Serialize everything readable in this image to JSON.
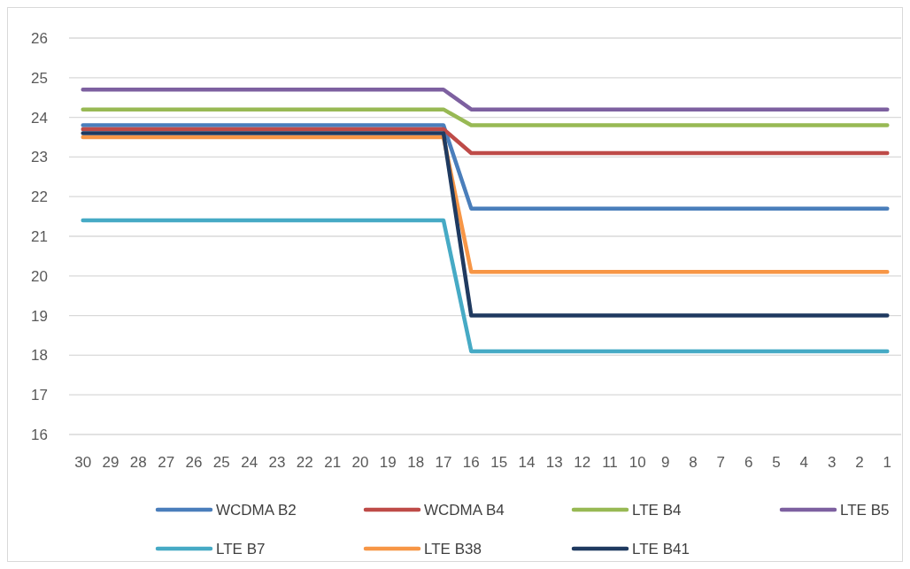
{
  "chart_data": {
    "type": "line",
    "categories": [
      "30",
      "29",
      "28",
      "27",
      "26",
      "25",
      "24",
      "23",
      "22",
      "21",
      "20",
      "19",
      "18",
      "17",
      "16",
      "15",
      "14",
      "13",
      "12",
      "11",
      "10",
      "9",
      "8",
      "7",
      "6",
      "5",
      "4",
      "3",
      "2",
      "1"
    ],
    "ylim": [
      16,
      26
    ],
    "yticks": [
      16,
      17,
      18,
      19,
      20,
      21,
      22,
      23,
      24,
      25,
      26
    ],
    "grid": "y",
    "legend": "bottom",
    "marker": "none",
    "line_style": "solid",
    "series": [
      {
        "name": "WCDMA B2",
        "color": "#4a7ebb",
        "values": [
          23.8,
          23.8,
          23.8,
          23.8,
          23.8,
          23.8,
          23.8,
          23.8,
          23.8,
          23.8,
          23.8,
          23.8,
          23.8,
          23.8,
          21.7,
          21.7,
          21.7,
          21.7,
          21.7,
          21.7,
          21.7,
          21.7,
          21.7,
          21.7,
          21.7,
          21.7,
          21.7,
          21.7,
          21.7,
          21.7
        ]
      },
      {
        "name": "WCDMA B4",
        "color": "#be4b48",
        "values": [
          23.7,
          23.7,
          23.7,
          23.7,
          23.7,
          23.7,
          23.7,
          23.7,
          23.7,
          23.7,
          23.7,
          23.7,
          23.7,
          23.7,
          23.1,
          23.1,
          23.1,
          23.1,
          23.1,
          23.1,
          23.1,
          23.1,
          23.1,
          23.1,
          23.1,
          23.1,
          23.1,
          23.1,
          23.1,
          23.1
        ]
      },
      {
        "name": "LTE B4",
        "color": "#98b954",
        "values": [
          24.2,
          24.2,
          24.2,
          24.2,
          24.2,
          24.2,
          24.2,
          24.2,
          24.2,
          24.2,
          24.2,
          24.2,
          24.2,
          24.2,
          23.8,
          23.8,
          23.8,
          23.8,
          23.8,
          23.8,
          23.8,
          23.8,
          23.8,
          23.8,
          23.8,
          23.8,
          23.8,
          23.8,
          23.8,
          23.8
        ]
      },
      {
        "name": "LTE B5",
        "color": "#7d60a0",
        "values": [
          24.7,
          24.7,
          24.7,
          24.7,
          24.7,
          24.7,
          24.7,
          24.7,
          24.7,
          24.7,
          24.7,
          24.7,
          24.7,
          24.7,
          24.2,
          24.2,
          24.2,
          24.2,
          24.2,
          24.2,
          24.2,
          24.2,
          24.2,
          24.2,
          24.2,
          24.2,
          24.2,
          24.2,
          24.2,
          24.2
        ]
      },
      {
        "name": "LTE B7",
        "color": "#46aac5",
        "values": [
          21.4,
          21.4,
          21.4,
          21.4,
          21.4,
          21.4,
          21.4,
          21.4,
          21.4,
          21.4,
          21.4,
          21.4,
          21.4,
          21.4,
          18.1,
          18.1,
          18.1,
          18.1,
          18.1,
          18.1,
          18.1,
          18.1,
          18.1,
          18.1,
          18.1,
          18.1,
          18.1,
          18.1,
          18.1,
          18.1
        ]
      },
      {
        "name": "LTE B38",
        "color": "#f79646",
        "values": [
          23.5,
          23.5,
          23.5,
          23.5,
          23.5,
          23.5,
          23.5,
          23.5,
          23.5,
          23.5,
          23.5,
          23.5,
          23.5,
          23.5,
          20.1,
          20.1,
          20.1,
          20.1,
          20.1,
          20.1,
          20.1,
          20.1,
          20.1,
          20.1,
          20.1,
          20.1,
          20.1,
          20.1,
          20.1,
          20.1
        ]
      },
      {
        "name": "LTE B41",
        "color": "#1f3a60",
        "values": [
          23.6,
          23.6,
          23.6,
          23.6,
          23.6,
          23.6,
          23.6,
          23.6,
          23.6,
          23.6,
          23.6,
          23.6,
          23.6,
          23.6,
          19.0,
          19.0,
          19.0,
          19.0,
          19.0,
          19.0,
          19.0,
          19.0,
          19.0,
          19.0,
          19.0,
          19.0,
          19.0,
          19.0,
          19.0,
          19.0
        ]
      }
    ]
  }
}
